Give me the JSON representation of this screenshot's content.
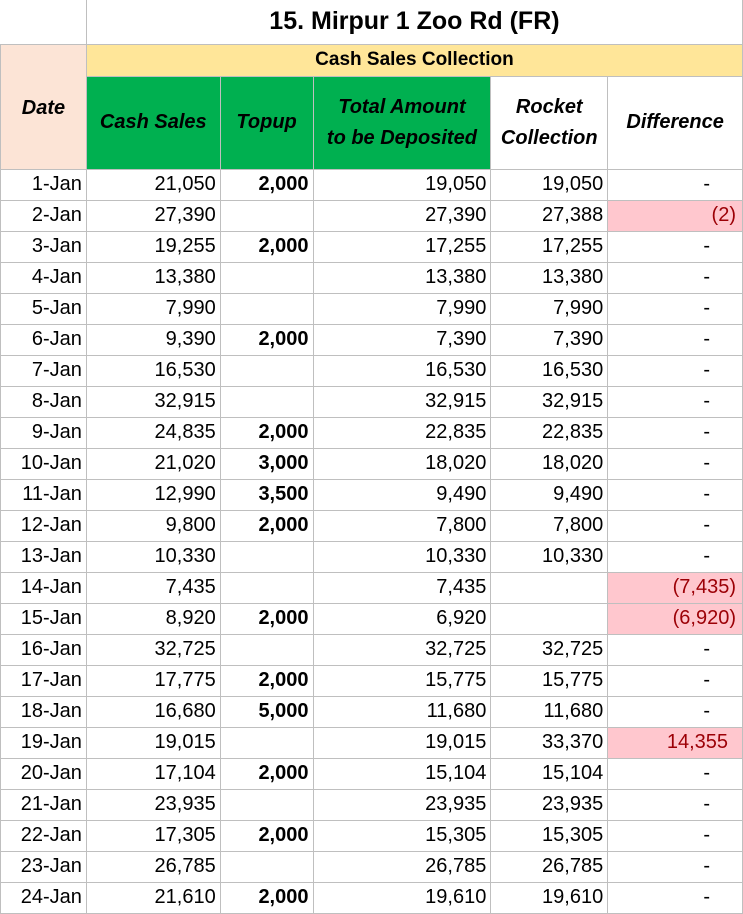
{
  "title": "15. Mirpur 1 Zoo Rd (FR)",
  "section_label": "Cash Sales Collection",
  "headers": {
    "date": "Date",
    "cash_sales": "Cash Sales",
    "topup": "Topup",
    "total_line1": "Total Amount",
    "total_line2": "to be Deposited",
    "rocket_line1": "Rocket",
    "rocket_line2": "Collection",
    "difference": "Difference"
  },
  "colors": {
    "title_band": "#ffe699",
    "green_header": "#00b050",
    "date_header": "#fce4d6",
    "topup_text": "#ed7d31",
    "diff_highlight_bg": "#ffc7ce",
    "diff_highlight_text": "#9c0006"
  },
  "rows": [
    {
      "date": "1-Jan",
      "cash": "21,050",
      "topup": "2,000",
      "total": "19,050",
      "rocket": "19,050",
      "diff": "-"
    },
    {
      "date": "2-Jan",
      "cash": "27,390",
      "topup": "",
      "total": "27,390",
      "rocket": "27,388",
      "diff": "(2)"
    },
    {
      "date": "3-Jan",
      "cash": "19,255",
      "topup": "2,000",
      "total": "17,255",
      "rocket": "17,255",
      "diff": "-"
    },
    {
      "date": "4-Jan",
      "cash": "13,380",
      "topup": "",
      "total": "13,380",
      "rocket": "13,380",
      "diff": "-"
    },
    {
      "date": "5-Jan",
      "cash": "7,990",
      "topup": "",
      "total": "7,990",
      "rocket": "7,990",
      "diff": "-"
    },
    {
      "date": "6-Jan",
      "cash": "9,390",
      "topup": "2,000",
      "total": "7,390",
      "rocket": "7,390",
      "diff": "-"
    },
    {
      "date": "7-Jan",
      "cash": "16,530",
      "topup": "",
      "total": "16,530",
      "rocket": "16,530",
      "diff": "-"
    },
    {
      "date": "8-Jan",
      "cash": "32,915",
      "topup": "",
      "total": "32,915",
      "rocket": "32,915",
      "diff": "-"
    },
    {
      "date": "9-Jan",
      "cash": "24,835",
      "topup": "2,000",
      "total": "22,835",
      "rocket": "22,835",
      "diff": "-"
    },
    {
      "date": "10-Jan",
      "cash": "21,020",
      "topup": "3,000",
      "total": "18,020",
      "rocket": "18,020",
      "diff": "-"
    },
    {
      "date": "11-Jan",
      "cash": "12,990",
      "topup": "3,500",
      "total": "9,490",
      "rocket": "9,490",
      "diff": "-"
    },
    {
      "date": "12-Jan",
      "cash": "9,800",
      "topup": "2,000",
      "total": "7,800",
      "rocket": "7,800",
      "diff": "-"
    },
    {
      "date": "13-Jan",
      "cash": "10,330",
      "topup": "",
      "total": "10,330",
      "rocket": "10,330",
      "diff": "-"
    },
    {
      "date": "14-Jan",
      "cash": "7,435",
      "topup": "",
      "total": "7,435",
      "rocket": "",
      "diff": "(7,435)"
    },
    {
      "date": "15-Jan",
      "cash": "8,920",
      "topup": "2,000",
      "total": "6,920",
      "rocket": "",
      "diff": "(6,920)"
    },
    {
      "date": "16-Jan",
      "cash": "32,725",
      "topup": "",
      "total": "32,725",
      "rocket": "32,725",
      "diff": "-"
    },
    {
      "date": "17-Jan",
      "cash": "17,775",
      "topup": "2,000",
      "total": "15,775",
      "rocket": "15,775",
      "diff": "-"
    },
    {
      "date": "18-Jan",
      "cash": "16,680",
      "topup": "5,000",
      "total": "11,680",
      "rocket": "11,680",
      "diff": "-"
    },
    {
      "date": "19-Jan",
      "cash": "19,015",
      "topup": "",
      "total": "19,015",
      "rocket": "33,370",
      "diff": "14,355"
    },
    {
      "date": "20-Jan",
      "cash": "17,104",
      "topup": "2,000",
      "total": "15,104",
      "rocket": "15,104",
      "diff": "-"
    },
    {
      "date": "21-Jan",
      "cash": "23,935",
      "topup": "",
      "total": "23,935",
      "rocket": "23,935",
      "diff": "-"
    },
    {
      "date": "22-Jan",
      "cash": "17,305",
      "topup": "2,000",
      "total": "15,305",
      "rocket": "15,305",
      "diff": "-"
    },
    {
      "date": "23-Jan",
      "cash": "26,785",
      "topup": "",
      "total": "26,785",
      "rocket": "26,785",
      "diff": "-"
    },
    {
      "date": "24-Jan",
      "cash": "21,610",
      "topup": "2,000",
      "total": "19,610",
      "rocket": "19,610",
      "diff": "-"
    }
  ]
}
